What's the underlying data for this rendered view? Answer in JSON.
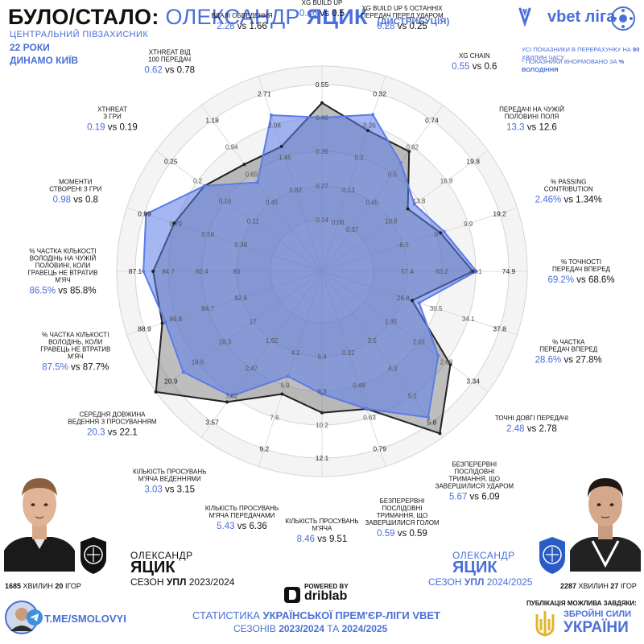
{
  "header": {
    "title_a": "БУЛО/СТАЛО:",
    "title_b": "ОЛЕКСАНДР",
    "title_c": "ЯЦИК",
    "title_sub": "(ДИСТРИБУЦІЯ)",
    "position": "ЦЕНТРАЛЬНИЙ ПІВЗАХИСНИК",
    "age": "22 РОКИ",
    "club": "ДИНАМО КИЇВ",
    "logo": "vbet ліга",
    "note1a": "УСІ ПОКАЗНИКИ В ПЕРЕРАХУНКУ НА",
    "note1b": "90",
    "note1c": "ХВИЛИН ЧАСУ",
    "note2a": "* ПОКАЗНИКИ ВНОРМОВАНО ЗА",
    "note2b": "% ВОЛОДІННЯ"
  },
  "left_player": {
    "name1": "ОЛЕКСАНДР",
    "name2": "ЯЦИК",
    "season_a": "СЕЗОН",
    "season_b": "УПЛ",
    "season_c": "2023/2024",
    "mins_a": "1685",
    "mins_b": "ХВИЛИН",
    "mins_c": "20",
    "mins_d": "ІГОР"
  },
  "right_player": {
    "name1": "ОЛЕКСАНДР",
    "name2": "ЯЦИК",
    "season_a": "СЕЗОН",
    "season_b": "УПЛ",
    "season_c": "2024/2025",
    "mins_a": "2287",
    "mins_b": "ХВИЛИН",
    "mins_c": "27",
    "mins_d": "ІГОР"
  },
  "footer": {
    "powered": "POWERED BY",
    "driblab": "driblab",
    "line1a": "СТАТИСТИКА",
    "line1b": "УКРАЇНСЬКОЇ ПРЕМ'ЄР-ЛІГИ VBET",
    "line2a": "СЕЗОНІВ",
    "line2b": "2023/2024",
    "line2c": "ТА",
    "line2d": "2024/2025",
    "telegram": "T.ME/SMOLOVYI",
    "publication": "ПУБЛІКАЦІЯ МОЖЛИВА ЗАВДЯКИ:",
    "zsu1": "ЗБРОЙНІ СИЛИ",
    "zsu2": "УКРАЇНИ"
  },
  "chart_data": {
    "type": "radar",
    "vs_word": "vs",
    "series": [
      {
        "name": "ОЛЕКСАНДР ЯЦИК 2024/2025",
        "color": "#5b7be8"
      },
      {
        "name": "ОЛЕКСАНДР ЯЦИК 2023/2024",
        "color": "#333333"
      }
    ],
    "axes": [
      {
        "label": [
          "XG BUILD UP"
        ],
        "new": 0.46,
        "old": 0.5,
        "new_txt": "0.46",
        "old_txt": "0.5",
        "ticks": [
          "0.14",
          "0.27",
          "0.36",
          "0.46",
          "0.55"
        ]
      },
      {
        "label": [
          "XG BUILD UP 5 ОСТАННІХ",
          "ПЕРЕДАЧ ПЕРЕД УДАРОМ"
        ],
        "new": 0.28,
        "old": 0.25,
        "new_txt": "0.28",
        "old_txt": "0.25",
        "ticks": [
          "0.06",
          "0.13",
          "0.2",
          "0.26",
          "0.32"
        ]
      },
      {
        "label": [
          "XG CHAIN"
        ],
        "new": 0.55,
        "old": 0.6,
        "new_txt": "0.55",
        "old_txt": "0.6",
        "ticks": [
          "0.37",
          "0.45",
          "0.5",
          "0.62",
          "0.74"
        ]
      },
      {
        "label": [
          "ПЕРЕДАЧІ НА ЧУЖІЙ",
          "ПОЛОВИНІ ПОЛЯ"
        ],
        "new": 13.3,
        "old": 12.6,
        "new_txt": "13.3",
        "old_txt": "12.6",
        "ticks": [
          "10.8",
          "13.8",
          "16.8",
          "19.8"
        ]
      },
      {
        "label": [
          "% PASSING",
          "CONTRIBUTION"
        ],
        "new": 2.46,
        "old": 1.34,
        "new_txt": "2.46%",
        "old_txt": "1.34%",
        "ticks": [
          "-8.5",
          "0",
          "9.9",
          "19.2"
        ]
      },
      {
        "label": [
          "% ТОЧНОСТІ",
          "ПЕРЕДАЧ ВПЕРЕД"
        ],
        "new": 69.2,
        "old": 68.6,
        "new_txt": "69.2%",
        "old_txt": "68.6%",
        "ticks": [
          "57.4",
          "63.2",
          "69.1",
          "74.9"
        ]
      },
      {
        "label": [
          "% ЧАСТКА",
          "ПЕРЕДАЧ ВПЕРЕД"
        ],
        "new": 28.6,
        "old": 27.8,
        "new_txt": "28.6%",
        "old_txt": "27.8%",
        "ticks": [
          "26.8",
          "30.5",
          "34.1",
          "37.8"
        ]
      },
      {
        "label": [
          "ТОЧНІ ДОВГІ ПЕРЕДАЧІ"
        ],
        "new": 2.48,
        "old": 2.78,
        "new_txt": "2.48",
        "old_txt": "2.78",
        "ticks": [
          "1.35",
          "2.01",
          "2.68",
          "3.34"
        ]
      },
      {
        "label": [
          "БЕЗПЕРЕРВНІ",
          "ПОСЛІДОВНІ",
          "ТРИМАННЯ, ЩО",
          "ЗАВЕРШИЛИСЯ УДАРОМ"
        ],
        "new": 5.67,
        "old": 6.09,
        "new_txt": "5.67",
        "old_txt": "6.09",
        "ticks": [
          "3.5",
          "4.3",
          "5.1",
          "5.8"
        ]
      },
      {
        "label": [
          "БЕЗПЕРЕРВНІ",
          "ПОСЛІДОВНІ",
          "ТРИМАННЯ, ЩО",
          "ЗАВЕРШИЛИСЯ ГОЛОМ"
        ],
        "new": 0.59,
        "old": 0.59,
        "new_txt": "0.59",
        "old_txt": "0.59",
        "ticks": [
          "0.32",
          "0.48",
          "0.63",
          "0.79"
        ]
      },
      {
        "label": [
          "КІЛЬКІСТЬ ПРОСУВАНЬ",
          "М'ЯЧА"
        ],
        "new": 8.46,
        "old": 9.51,
        "new_txt": "8.46",
        "old_txt": "9.51",
        "ticks": [
          "6.4",
          "8.3",
          "10.2",
          "12.1"
        ]
      },
      {
        "label": [
          "КІЛЬКІСТЬ ПРОСУВАНЬ",
          "М'ЯЧА ПЕРЕДАЧАМИ"
        ],
        "new": 5.43,
        "old": 6.36,
        "new_txt": "5.43",
        "old_txt": "6.36",
        "ticks": [
          "4.2",
          "5.9",
          "7.6",
          "9.2"
        ]
      },
      {
        "label": [
          "КІЛЬКІСТЬ ПРОСУВАНЬ",
          "М'ЯЧА ВЕДЕННЯМИ"
        ],
        "new": 3.03,
        "old": 3.15,
        "new_txt": "3.03",
        "old_txt": "3.15",
        "ticks": [
          "1.92",
          "2.47",
          "3.02",
          "3.57"
        ]
      },
      {
        "label": [
          "СЕРЕДНЯ ДОВЖИНА",
          "ВЕДЕННЯ З ПРОСУВАННЯМ"
        ],
        "new": 20.3,
        "old": 22.1,
        "new_txt": "20.3",
        "old_txt": "22.1",
        "ticks": [
          "17",
          "18.3",
          "19.6",
          "20.9"
        ]
      },
      {
        "label": [
          "% ЧАСТКА КІЛЬКОСТІ",
          "ВОЛОДІНЬ, КОЛИ",
          "ГРАВЕЦЬ НЕ ВТРАТИВ",
          "М'ЯЧ"
        ],
        "new": 87.5,
        "old": 87.7,
        "new_txt": "87.5%",
        "old_txt": "87.7%",
        "ticks": [
          "82.6",
          "84.7",
          "86.8",
          "88.9"
        ]
      },
      {
        "label": [
          "% ЧАСТКА КІЛЬКОСТІ",
          "ВОЛОДІНЬ НА ЧУЖІЙ",
          "ПОЛОВИНІ, КОЛИ",
          "ГРАВЕЦЬ НЕ ВТРАТИВ",
          "М'ЯЧ"
        ],
        "new": 86.5,
        "old": 85.8,
        "new_txt": "86.5%",
        "old_txt": "85.8%",
        "ticks": [
          "80",
          "82.4",
          "84.7",
          "87.1"
        ]
      },
      {
        "label": [
          "МОМЕНТИ",
          "СТВОРЕНІ З ГРИ"
        ],
        "new": 0.98,
        "old": 0.8,
        "new_txt": "0.98",
        "old_txt": "0.8",
        "ticks": [
          "0.38",
          "0.58",
          "0.79",
          "0.99"
        ]
      },
      {
        "label": [
          "XTHREAT",
          "З ГРИ"
        ],
        "new": 0.19,
        "old": 0.19,
        "new_txt": "0.19",
        "old_txt": "0.19",
        "ticks": [
          "0.11",
          "0.16",
          "0.2",
          "0.25"
        ]
      },
      {
        "label": [
          "XTHREAT ВІД",
          "100 ПЕРЕДАЧ"
        ],
        "new": 0.62,
        "old": 0.78,
        "new_txt": "0.62",
        "old_txt": "0.78",
        "ticks": [
          "0.45",
          "0.69",
          "0.94",
          "1.18"
        ]
      },
      {
        "label": [
          "ВДАЛІ ОБВЕДЕННЯ"
        ],
        "new": 2.28,
        "old": 1.66,
        "new_txt": "2.28",
        "old_txt": "1.66",
        "ticks": [
          "0.82",
          "1.45",
          "2.08",
          "2.71"
        ]
      }
    ]
  }
}
